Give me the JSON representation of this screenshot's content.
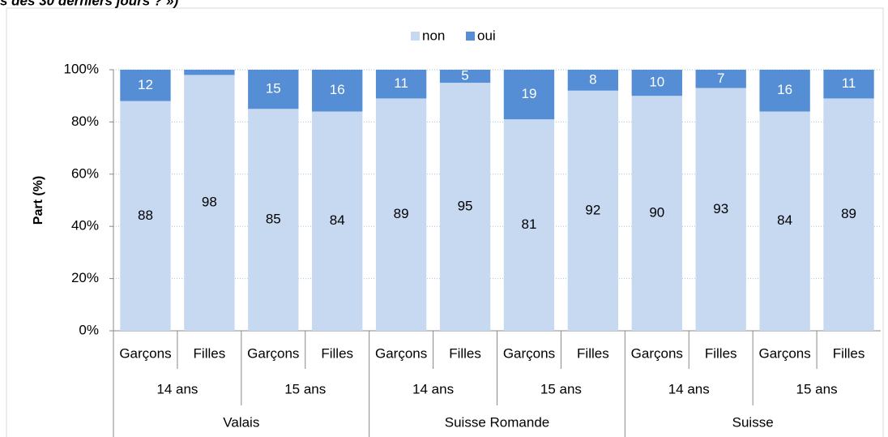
{
  "chart_data": {
    "type": "stacked_bar",
    "title": "s des 30 derniers jours ? »)",
    "y_label": "Part (%)",
    "categories": [
      "Garçons",
      "Filles",
      "Garçons",
      "Filles",
      "Garçons",
      "Filles",
      "Garçons",
      "Filles",
      "Garçons",
      "Filles",
      "Garçons",
      "Filles"
    ],
    "category_groups": [
      {
        "labels": [
          "14 ans",
          "15 ans",
          "14 ans",
          "15 ans",
          "14 ans",
          "15 ans"
        ]
      },
      {
        "labels": [
          "Valais",
          "Suisse Romande",
          "Suisse"
        ]
      }
    ],
    "series": [
      {
        "name": "non",
        "color": "#c6d9f1",
        "values": [
          88,
          98,
          85,
          84,
          89,
          95,
          81,
          92,
          90,
          93,
          84,
          89
        ]
      },
      {
        "name": "oui",
        "color": "#558ed5",
        "values": [
          12,
          2,
          15,
          16,
          11,
          5,
          19,
          8,
          10,
          7,
          16,
          11
        ],
        "value_labels": [
          "12",
          null,
          "15",
          "16",
          "11",
          "5",
          "19",
          "8",
          "10",
          "7",
          "16",
          "11"
        ]
      }
    ],
    "ylim": [
      0,
      100
    ],
    "yticks": [
      {
        "value": 0,
        "label": "0%"
      },
      {
        "value": 20,
        "label": "20%"
      },
      {
        "value": 40,
        "label": "40%"
      },
      {
        "value": 60,
        "label": "60%"
      },
      {
        "value": 80,
        "label": "80%"
      },
      {
        "value": 100,
        "label": "100%"
      }
    ],
    "grid": true,
    "legend": "top"
  }
}
